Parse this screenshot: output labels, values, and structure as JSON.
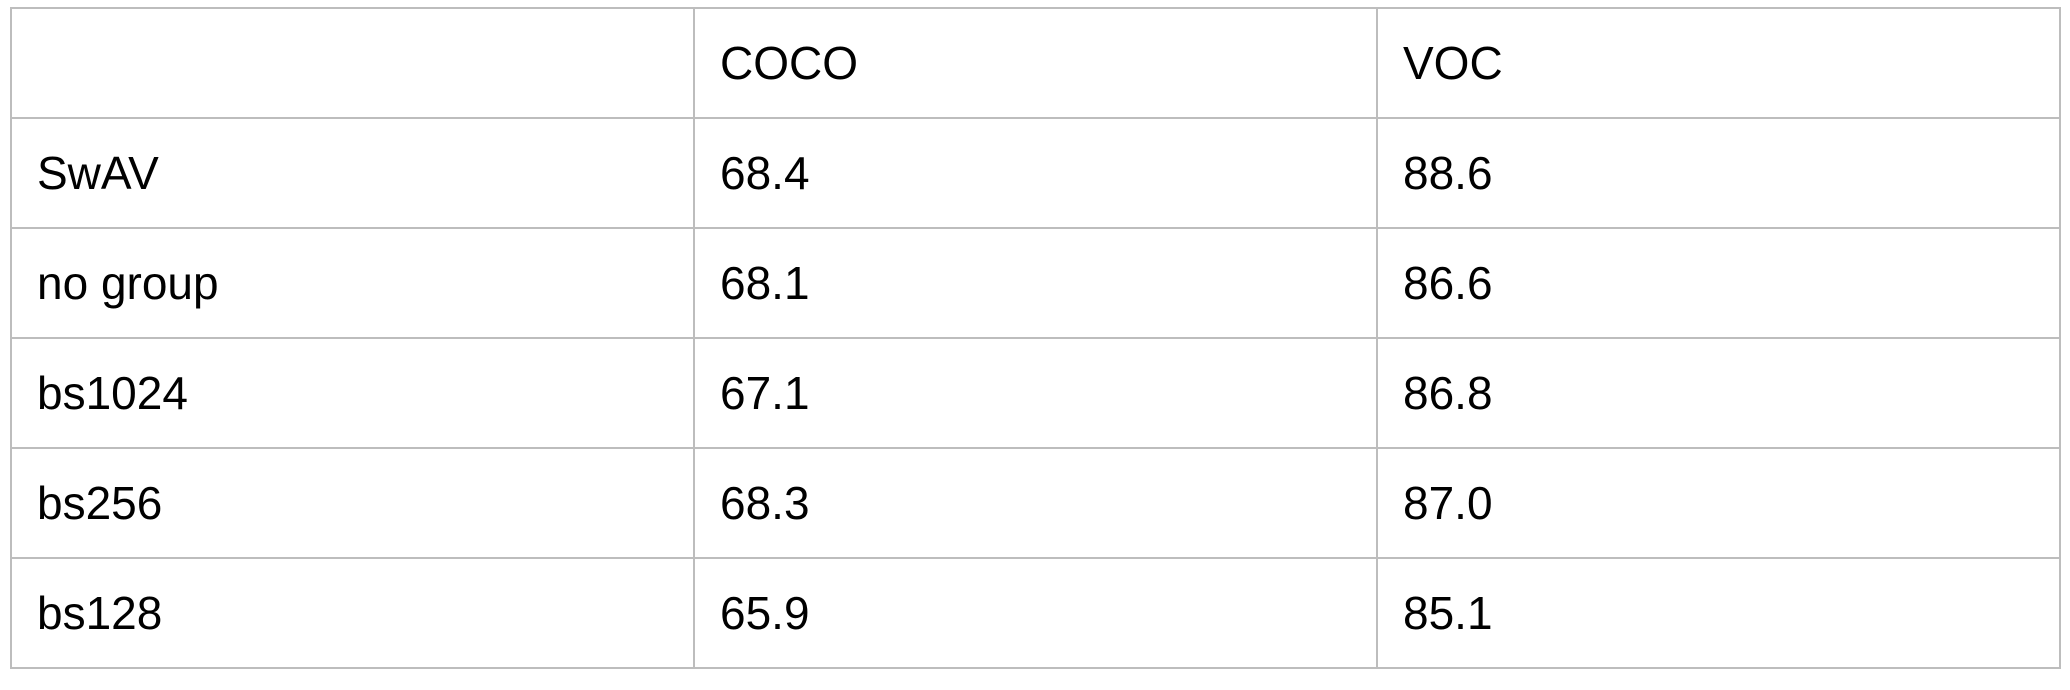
{
  "table": {
    "header": [
      "",
      "COCO",
      "VOC"
    ],
    "rows": [
      [
        "SwAV",
        "68.4",
        "88.6"
      ],
      [
        "no group",
        "68.1",
        "86.6"
      ],
      [
        "bs1024",
        "67.1",
        "86.8"
      ],
      [
        "bs256",
        "68.3",
        "87.0"
      ],
      [
        "bs128",
        "65.9",
        "85.1"
      ]
    ]
  },
  "colors": {
    "border": "#bdbdbd",
    "text": "#000000",
    "background": "#ffffff"
  }
}
